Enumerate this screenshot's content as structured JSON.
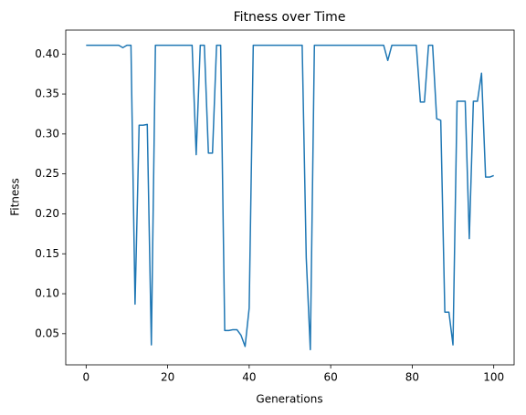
{
  "chart_data": {
    "type": "line",
    "title": "Fitness over Time",
    "x_label": "Generations",
    "y_label": "Fitness",
    "x": [
      0,
      1,
      2,
      3,
      4,
      5,
      6,
      7,
      8,
      9,
      10,
      11,
      12,
      13,
      14,
      15,
      16,
      17,
      18,
      19,
      20,
      21,
      22,
      23,
      24,
      25,
      26,
      27,
      28,
      29,
      30,
      31,
      32,
      33,
      34,
      35,
      36,
      37,
      38,
      39,
      40,
      41,
      42,
      43,
      44,
      45,
      46,
      47,
      48,
      49,
      50,
      51,
      52,
      53,
      54,
      55,
      56,
      57,
      58,
      59,
      60,
      61,
      62,
      63,
      64,
      65,
      66,
      67,
      68,
      69,
      70,
      71,
      72,
      73,
      74,
      75,
      76,
      77,
      78,
      79,
      80,
      81,
      82,
      83,
      84,
      85,
      86,
      87,
      88,
      89,
      90,
      91,
      92,
      93,
      94,
      95,
      96,
      97,
      98,
      99,
      100
    ],
    "series": [
      {
        "name": "Fitness",
        "color": "#1f77b4",
        "values": [
          0.411,
          0.411,
          0.411,
          0.411,
          0.411,
          0.411,
          0.411,
          0.411,
          0.411,
          0.408,
          0.411,
          0.411,
          0.087,
          0.311,
          0.311,
          0.312,
          0.036,
          0.411,
          0.411,
          0.411,
          0.411,
          0.411,
          0.411,
          0.411,
          0.411,
          0.411,
          0.411,
          0.274,
          0.411,
          0.411,
          0.276,
          0.276,
          0.411,
          0.411,
          0.054,
          0.054,
          0.055,
          0.055,
          0.048,
          0.034,
          0.082,
          0.411,
          0.411,
          0.411,
          0.411,
          0.411,
          0.411,
          0.411,
          0.411,
          0.411,
          0.411,
          0.411,
          0.411,
          0.411,
          0.145,
          0.03,
          0.411,
          0.411,
          0.411,
          0.411,
          0.411,
          0.411,
          0.411,
          0.411,
          0.411,
          0.411,
          0.411,
          0.411,
          0.411,
          0.411,
          0.411,
          0.411,
          0.411,
          0.411,
          0.392,
          0.411,
          0.411,
          0.411,
          0.411,
          0.411,
          0.411,
          0.411,
          0.34,
          0.34,
          0.411,
          0.411,
          0.319,
          0.317,
          0.077,
          0.077,
          0.036,
          0.341,
          0.341,
          0.341,
          0.169,
          0.341,
          0.341,
          0.376,
          0.246,
          0.246,
          0.248
        ]
      }
    ],
    "xlim": [
      -5,
      105
    ],
    "ylim": [
      0.011,
      0.43
    ],
    "xticks": [
      0,
      20,
      40,
      60,
      80,
      100
    ],
    "yticks": [
      0.05,
      {
        "value": 0.1,
        "label": "0.10"
      },
      0.15,
      {
        "value": 0.2,
        "label": "0.20"
      },
      0.25,
      {
        "value": 0.3,
        "label": "0.30"
      },
      0.35,
      {
        "value": 0.4,
        "label": "0.40"
      }
    ]
  }
}
